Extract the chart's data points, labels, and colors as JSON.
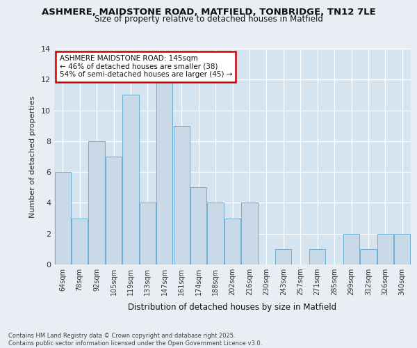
{
  "title1": "ASHMERE, MAIDSTONE ROAD, MATFIELD, TONBRIDGE, TN12 7LE",
  "title2": "Size of property relative to detached houses in Matfield",
  "xlabel": "Distribution of detached houses by size in Matfield",
  "ylabel": "Number of detached properties",
  "categories": [
    "64sqm",
    "78sqm",
    "92sqm",
    "105sqm",
    "119sqm",
    "133sqm",
    "147sqm",
    "161sqm",
    "174sqm",
    "188sqm",
    "202sqm",
    "216sqm",
    "230sqm",
    "243sqm",
    "257sqm",
    "271sqm",
    "285sqm",
    "299sqm",
    "312sqm",
    "326sqm",
    "340sqm"
  ],
  "values": [
    6,
    3,
    8,
    7,
    11,
    4,
    12,
    9,
    5,
    4,
    3,
    4,
    0,
    1,
    0,
    1,
    0,
    2,
    1,
    2,
    2
  ],
  "bar_color": "#c9d9e8",
  "bar_edge_color": "#6aafd4",
  "annotation_box_text": "ASHMERE MAIDSTONE ROAD: 145sqm\n← 46% of detached houses are smaller (38)\n54% of semi-detached houses are larger (45) →",
  "annotation_box_color": "#ffffff",
  "annotation_box_edge_color": "#cc0000",
  "ylim": [
    0,
    14
  ],
  "yticks": [
    0,
    2,
    4,
    6,
    8,
    10,
    12,
    14
  ],
  "footnote": "Contains HM Land Registry data © Crown copyright and database right 2025.\nContains public sector information licensed under the Open Government Licence v3.0.",
  "bg_color": "#e8eef4",
  "plot_bg_color": "#d6e4ef"
}
